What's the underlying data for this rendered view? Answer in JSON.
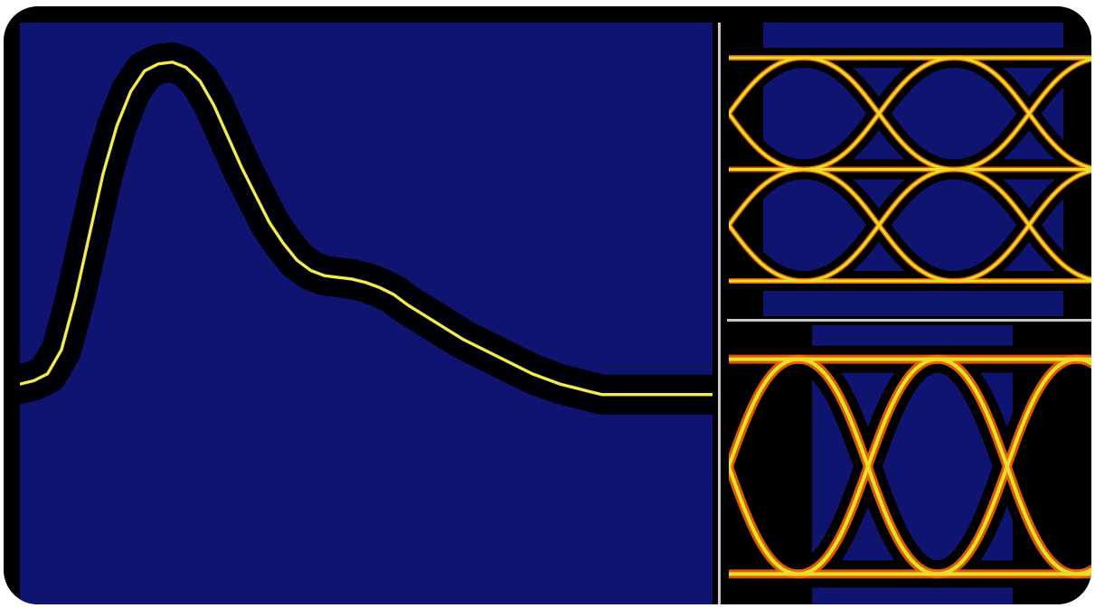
{
  "colors": {
    "background": "#101471",
    "persistence": "#000000",
    "trace": "#e6df2c",
    "trace_hot": "#ff6a00",
    "divider": "#c8c8c8"
  },
  "chart_data": [
    {
      "type": "line",
      "name": "single-pulse-trace",
      "x": [
        0,
        2,
        4,
        6,
        8,
        10,
        12,
        14,
        16,
        18,
        20,
        22,
        24,
        26,
        28,
        30,
        32,
        34,
        36,
        38,
        40,
        42,
        44,
        46,
        48,
        50,
        52,
        54,
        56,
        58,
        60,
        62,
        64,
        66,
        68,
        70,
        72,
        74,
        76,
        78,
        80,
        82,
        84,
        86,
        88,
        90,
        92,
        94,
        96,
        98,
        100
      ],
      "series": [
        {
          "values": [
            0.05,
            0.06,
            0.08,
            0.15,
            0.3,
            0.48,
            0.66,
            0.8,
            0.9,
            0.96,
            0.98,
            0.985,
            0.97,
            0.93,
            0.86,
            0.77,
            0.68,
            0.6,
            0.52,
            0.46,
            0.41,
            0.38,
            0.365,
            0.36,
            0.355,
            0.345,
            0.33,
            0.31,
            0.28,
            0.255,
            0.23,
            0.205,
            0.18,
            0.16,
            0.14,
            0.12,
            0.1,
            0.08,
            0.065,
            0.05,
            0.04,
            0.03,
            0.02,
            0.02,
            0.02,
            0.02,
            0.02,
            0.02,
            0.02,
            0.02,
            0.02
          ]
        }
      ],
      "xlim": [
        0,
        100
      ],
      "ylim": [
        -0.6,
        1.1
      ],
      "grid": false
    },
    {
      "type": "line",
      "name": "multi-level-eye-diagram",
      "levels": [
        1,
        0,
        -1
      ],
      "eye_period_fraction": 0.41,
      "traces_per_level": 3,
      "grid": false
    },
    {
      "type": "line",
      "name": "binary-eye-diagram",
      "levels": [
        1,
        -1
      ],
      "eye_period_fraction": 0.38,
      "grid": false
    }
  ]
}
